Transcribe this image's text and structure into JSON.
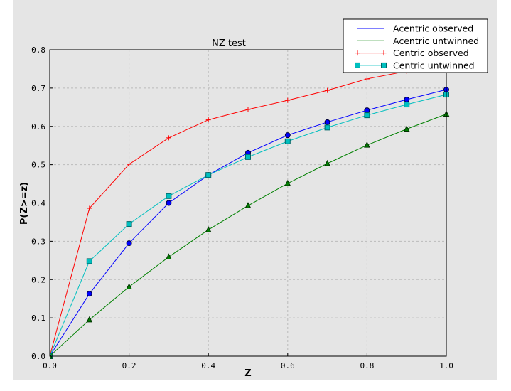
{
  "chart_data": {
    "type": "line",
    "title": "NZ test",
    "xlabel": "Z",
    "ylabel": "P(Z>=z)",
    "xlim": [
      0.0,
      1.0
    ],
    "ylim": [
      0.0,
      0.8
    ],
    "grid": true,
    "legend_position": "top-right",
    "xticks": [
      "0.0",
      "0.2",
      "0.4",
      "0.6",
      "0.8",
      "1.0"
    ],
    "yticks": [
      "0.0",
      "0.1",
      "0.2",
      "0.3",
      "0.4",
      "0.5",
      "0.6",
      "0.7",
      "0.8"
    ],
    "x": [
      0.0,
      0.1,
      0.2,
      0.3,
      0.4,
      0.5,
      0.6,
      0.7,
      0.8,
      0.9,
      1.0
    ],
    "series": [
      {
        "name": "Acentric observed",
        "color": "#0000ff",
        "marker": "circle",
        "values": [
          0.0,
          0.163,
          0.295,
          0.4,
          0.473,
          0.531,
          0.577,
          0.611,
          0.642,
          0.67,
          0.696
        ]
      },
      {
        "name": "Acentric untwinned",
        "color": "#008000",
        "marker": "triangle",
        "values": [
          0.0,
          0.095,
          0.181,
          0.259,
          0.33,
          0.393,
          0.451,
          0.503,
          0.551,
          0.593,
          0.632
        ]
      },
      {
        "name": "Centric observed",
        "color": "#ff0000",
        "marker": "plus",
        "values": [
          0.0,
          0.386,
          0.501,
          0.57,
          0.617,
          0.644,
          0.668,
          0.694,
          0.724,
          0.744,
          0.77
        ]
      },
      {
        "name": "Centric untwinned",
        "color": "#00bfbf",
        "marker": "square",
        "values": [
          0.0,
          0.248,
          0.345,
          0.418,
          0.473,
          0.52,
          0.561,
          0.597,
          0.629,
          0.657,
          0.683
        ]
      }
    ]
  }
}
